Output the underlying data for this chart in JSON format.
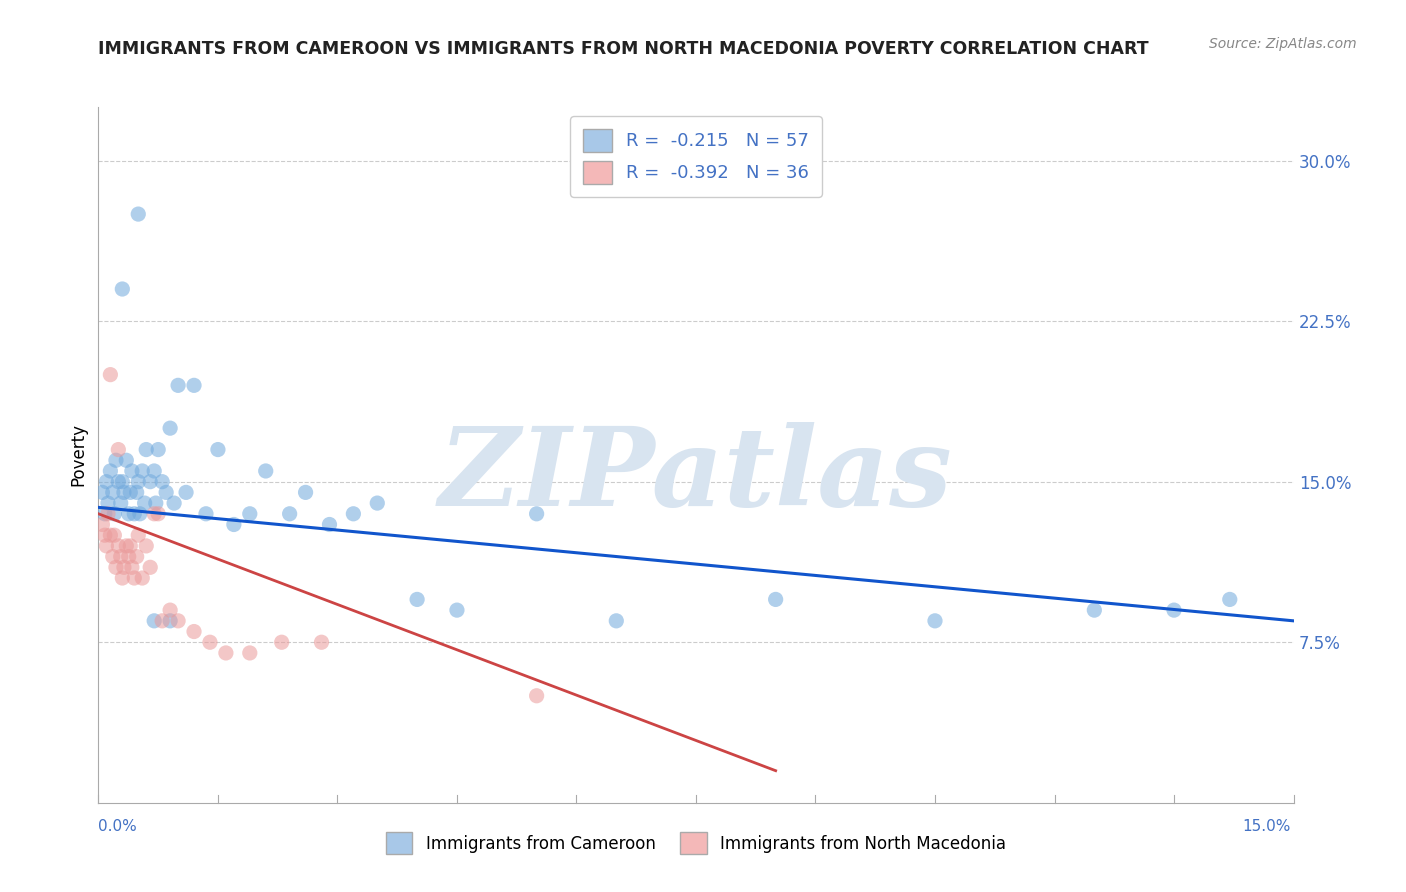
{
  "title": "IMMIGRANTS FROM CAMEROON VS IMMIGRANTS FROM NORTH MACEDONIA POVERTY CORRELATION CHART",
  "source": "Source: ZipAtlas.com",
  "ylabel": "Poverty",
  "right_yticks": [
    7.5,
    15.0,
    22.5,
    30.0
  ],
  "right_ytick_labels": [
    "7.5%",
    "15.0%",
    "22.5%",
    "30.0%"
  ],
  "xlim": [
    0.0,
    15.0
  ],
  "ylim": [
    0.0,
    32.5
  ],
  "cameroon": {
    "name": "Immigrants from Cameroon",
    "color": "#6fa8dc",
    "marker_color": "#6fa8dc",
    "R": -0.215,
    "N": 57,
    "x": [
      0.05,
      0.08,
      0.1,
      0.12,
      0.15,
      0.18,
      0.2,
      0.22,
      0.25,
      0.28,
      0.3,
      0.32,
      0.35,
      0.38,
      0.4,
      0.42,
      0.45,
      0.48,
      0.5,
      0.52,
      0.55,
      0.58,
      0.6,
      0.65,
      0.7,
      0.72,
      0.75,
      0.8,
      0.85,
      0.9,
      0.95,
      1.0,
      1.1,
      1.2,
      1.35,
      1.5,
      1.7,
      1.9,
      2.1,
      2.4,
      2.6,
      2.9,
      3.2,
      3.5,
      4.0,
      4.5,
      5.5,
      6.5,
      8.5,
      10.5,
      12.5,
      13.5,
      14.2,
      0.3,
      0.5,
      0.7,
      0.9
    ],
    "y": [
      14.5,
      13.5,
      15.0,
      14.0,
      15.5,
      14.5,
      13.5,
      16.0,
      15.0,
      14.0,
      15.0,
      14.5,
      16.0,
      13.5,
      14.5,
      15.5,
      13.5,
      14.5,
      15.0,
      13.5,
      15.5,
      14.0,
      16.5,
      15.0,
      15.5,
      14.0,
      16.5,
      15.0,
      14.5,
      17.5,
      14.0,
      19.5,
      14.5,
      19.5,
      13.5,
      16.5,
      13.0,
      13.5,
      15.5,
      13.5,
      14.5,
      13.0,
      13.5,
      14.0,
      9.5,
      9.0,
      13.5,
      8.5,
      9.5,
      8.5,
      9.0,
      9.0,
      9.5,
      24.0,
      27.5,
      8.5,
      8.5
    ],
    "line_x": [
      0.0,
      15.0
    ],
    "line_y": [
      13.8,
      8.5
    ],
    "line_color": "#1155cc",
    "line_style": "-",
    "line_width": 2.2
  },
  "macedonia": {
    "name": "Immigrants from North Macedonia",
    "color": "#ea9999",
    "marker_color": "#ea9999",
    "R": -0.392,
    "N": 36,
    "x": [
      0.05,
      0.08,
      0.1,
      0.12,
      0.15,
      0.18,
      0.2,
      0.22,
      0.25,
      0.28,
      0.3,
      0.32,
      0.35,
      0.38,
      0.4,
      0.42,
      0.45,
      0.48,
      0.5,
      0.55,
      0.6,
      0.65,
      0.7,
      0.75,
      0.8,
      0.9,
      1.0,
      1.2,
      1.4,
      1.6,
      1.9,
      2.3,
      2.8,
      5.5,
      0.15,
      0.25
    ],
    "y": [
      13.0,
      12.5,
      12.0,
      13.5,
      12.5,
      11.5,
      12.5,
      11.0,
      12.0,
      11.5,
      10.5,
      11.0,
      12.0,
      11.5,
      12.0,
      11.0,
      10.5,
      11.5,
      12.5,
      10.5,
      12.0,
      11.0,
      13.5,
      13.5,
      8.5,
      9.0,
      8.5,
      8.0,
      7.5,
      7.0,
      7.0,
      7.5,
      7.5,
      5.0,
      20.0,
      16.5
    ],
    "line_x": [
      0.0,
      8.5
    ],
    "line_y": [
      13.5,
      1.5
    ],
    "line_color": "#cc4444",
    "line_style": "-",
    "line_width": 2.0
  },
  "watermark_text": "ZIPatlas",
  "watermark_color": "#d8e4f0",
  "background_color": "#ffffff",
  "grid_color": "#cccccc",
  "title_color": "#222222",
  "title_fontsize": 12.5,
  "source_color": "#888888",
  "axis_label_color": "#4472c4",
  "legend_label_color": "#4472c4",
  "legend_box_colors": [
    "#a8c8e8",
    "#f4b8b8"
  ]
}
